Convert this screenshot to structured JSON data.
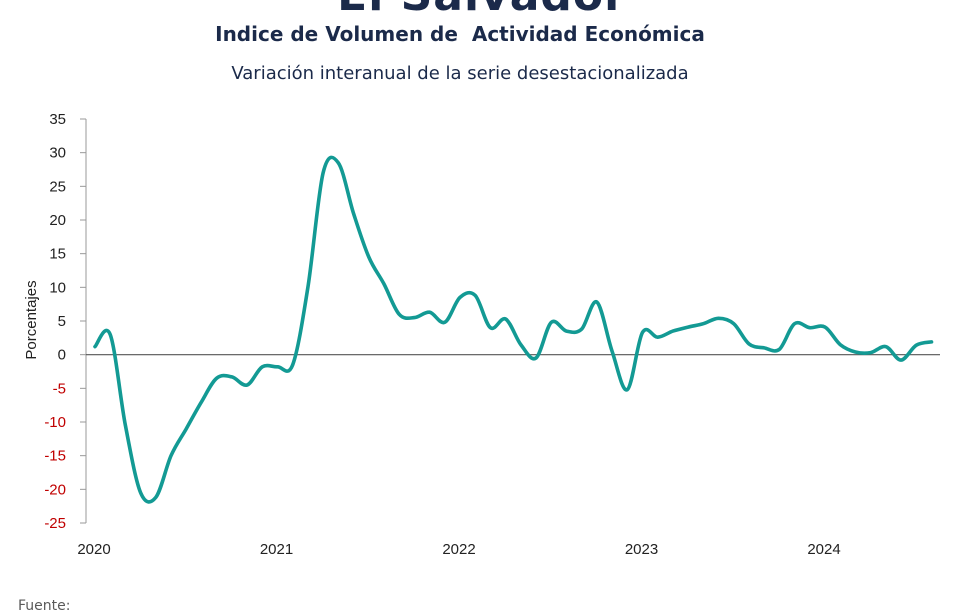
{
  "header": {
    "country": "El Salvador",
    "title": "Indice de Volumen de  Actividad Económica",
    "subtitle": "Variación interanual de la serie desestacionalizada"
  },
  "footer": {
    "source_label": "Fuente:"
  },
  "colors": {
    "line": "#139a94",
    "zero_line": "#555555",
    "negative_tick": "#c00000"
  },
  "chart_data": {
    "type": "line",
    "title": "Indice de Volumen de  Actividad Económica",
    "subtitle": "Variación interanual de la serie desestacionalizada",
    "xlabel": "",
    "ylabel": "Porcentajes",
    "ylim": [
      -25,
      35
    ],
    "yticks": [
      35,
      30,
      25,
      20,
      15,
      10,
      5,
      0,
      -5,
      -10,
      -15,
      -20,
      -25
    ],
    "xticks": [
      "2020",
      "2021",
      "2022",
      "2023",
      "2024"
    ],
    "xlim": [
      "2020-01",
      "2024-08"
    ],
    "grid": false,
    "series": [
      {
        "x": [
          "2020-01",
          "2020-02",
          "2020-03",
          "2020-04",
          "2020-05",
          "2020-06",
          "2020-07",
          "2020-08",
          "2020-09",
          "2020-10",
          "2020-11",
          "2020-12",
          "2021-01",
          "2021-02",
          "2021-03",
          "2021-04",
          "2021-05",
          "2021-06",
          "2021-07",
          "2021-08",
          "2021-09",
          "2021-10",
          "2021-11",
          "2021-12",
          "2022-01",
          "2022-02",
          "2022-03",
          "2022-04",
          "2022-05",
          "2022-06",
          "2022-07",
          "2022-08",
          "2022-09",
          "2022-10",
          "2022-11",
          "2022-12",
          "2023-01",
          "2023-02",
          "2023-03",
          "2023-04",
          "2023-05",
          "2023-06",
          "2023-07",
          "2023-08",
          "2023-09",
          "2023-10",
          "2023-11",
          "2023-12",
          "2024-01",
          "2024-02",
          "2024-03",
          "2024-04",
          "2024-05",
          "2024-06",
          "2024-07",
          "2024-08"
        ],
        "values": [
          1.2,
          3.0,
          -10.5,
          -20.5,
          -21.2,
          -15.0,
          -11.0,
          -7.0,
          -3.5,
          -3.3,
          -4.5,
          -1.8,
          -1.8,
          -1.5,
          10.0,
          27.0,
          28.5,
          21.0,
          14.5,
          10.5,
          6.0,
          5.5,
          6.3,
          4.8,
          8.5,
          8.8,
          4.0,
          5.3,
          1.5,
          -0.5,
          4.8,
          3.5,
          3.8,
          7.8,
          0.5,
          -5.2,
          3.3,
          2.6,
          3.5,
          4.1,
          4.6,
          5.4,
          4.6,
          1.6,
          1.0,
          0.8,
          4.6,
          4.0,
          4.1,
          1.5,
          0.4,
          0.3,
          1.2,
          -0.8,
          1.4,
          1.9
        ]
      }
    ]
  }
}
